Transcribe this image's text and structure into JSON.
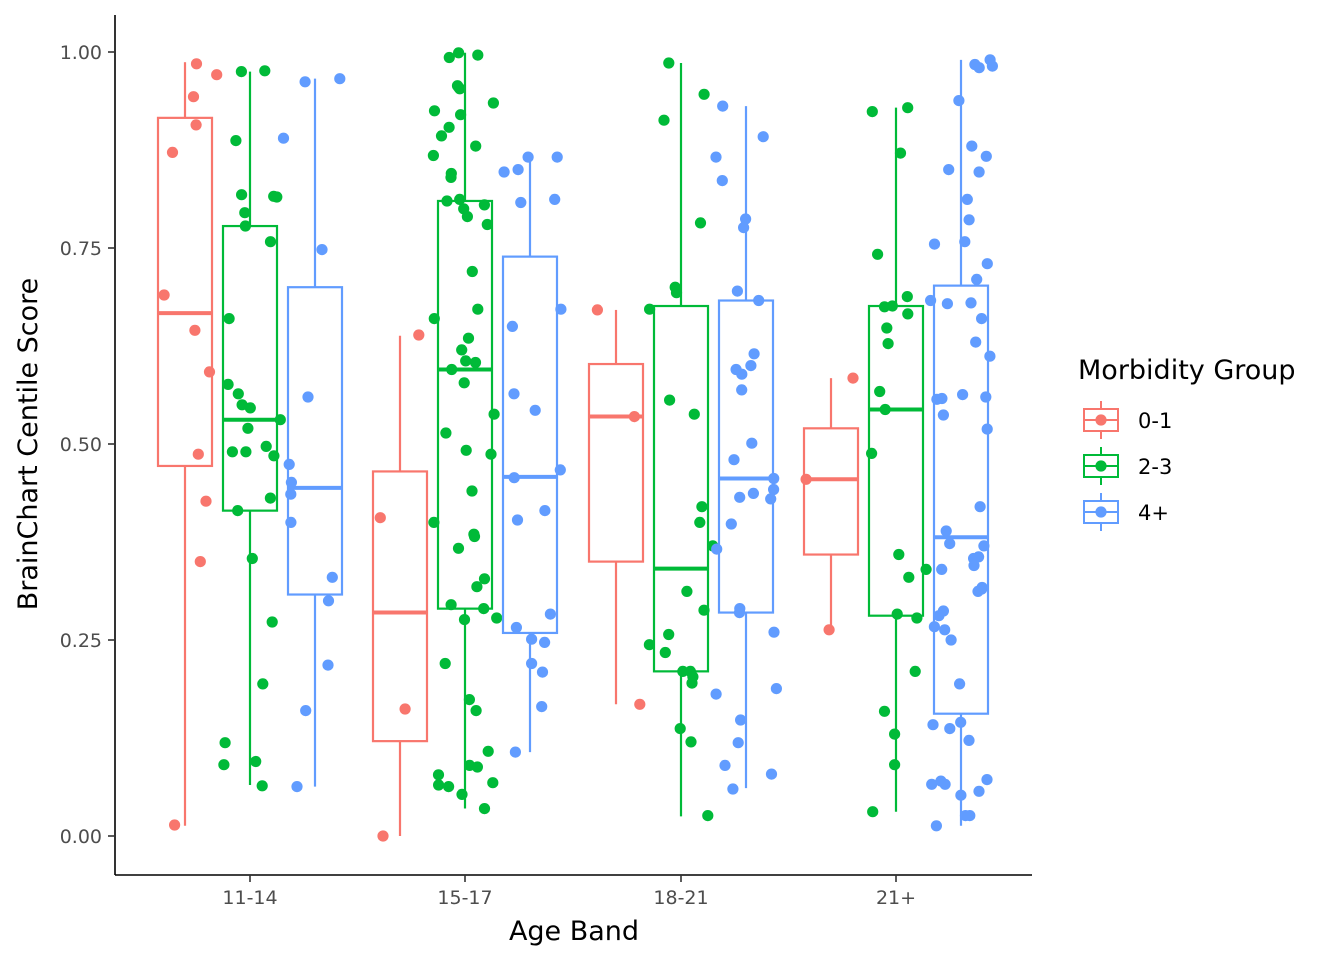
{
  "chart_data": {
    "type": "box",
    "xlabel": "Age Band",
    "ylabel": "BrainChart Centile Score",
    "ylim": [
      -0.05,
      1.05
    ],
    "y_ticks": [
      "0.00",
      "0.25",
      "0.50",
      "0.75",
      "1.00"
    ],
    "y_tick_values": [
      0,
      0.25,
      0.5,
      0.75,
      1.0
    ],
    "categories": [
      "11-14",
      "15-17",
      "18-21",
      "21+"
    ],
    "grid": false,
    "legend": {
      "title": "Morbidity Group",
      "position": "right"
    },
    "series": [
      {
        "name": "0-1",
        "color": "#F8766D",
        "boxes": [
          {
            "category": "11-14",
            "whisker_low": 0.013,
            "q1": 0.472,
            "median": 0.667,
            "q3": 0.916,
            "whisker_high": 0.987,
            "points": [
              0.645,
              0.872,
              0.943,
              0.971,
              0.985,
              0.907,
              0.69,
              0.592,
              0.487,
              0.427,
              0.35,
              0.014
            ]
          },
          {
            "category": "15-17",
            "whisker_low": 0.0,
            "q1": 0.121,
            "median": 0.285,
            "q3": 0.465,
            "whisker_high": 0.638,
            "points": [
              0.639,
              0.406,
              0.162,
              0.0
            ]
          },
          {
            "category": "18-21",
            "whisker_low": 0.168,
            "q1": 0.35,
            "median": 0.535,
            "q3": 0.602,
            "whisker_high": 0.671,
            "points": [
              0.671,
              0.535,
              0.168
            ]
          },
          {
            "category": "21+",
            "whisker_low": 0.263,
            "q1": 0.359,
            "median": 0.455,
            "q3": 0.52,
            "whisker_high": 0.584,
            "points": [
              0.584,
              0.455,
              0.263
            ]
          }
        ]
      },
      {
        "name": "2-3",
        "color": "#00BA38",
        "boxes": [
          {
            "category": "11-14",
            "whisker_low": 0.065,
            "q1": 0.415,
            "median": 0.531,
            "q3": 0.778,
            "whisker_high": 0.975,
            "points": [
              0.976,
              0.975,
              0.887,
              0.818,
              0.815,
              0.816,
              0.795,
              0.778,
              0.758,
              0.66,
              0.576,
              0.564,
              0.55,
              0.546,
              0.531,
              0.52,
              0.497,
              0.49,
              0.49,
              0.485,
              0.431,
              0.415,
              0.354,
              0.273,
              0.194,
              0.119,
              0.095,
              0.091,
              0.064
            ]
          },
          {
            "category": "15-17",
            "whisker_low": 0.035,
            "q1": 0.29,
            "median": 0.595,
            "q3": 0.81,
            "whisker_high": 0.999,
            "points": [
              0.999,
              0.996,
              0.993,
              0.957,
              0.955,
              0.953,
              0.935,
              0.92,
              0.925,
              0.904,
              0.893,
              0.88,
              0.868,
              0.845,
              0.84,
              0.812,
              0.81,
              0.805,
              0.8,
              0.79,
              0.78,
              0.72,
              0.672,
              0.66,
              0.635,
              0.62,
              0.606,
              0.604,
              0.595,
              0.578,
              0.538,
              0.514,
              0.492,
              0.487,
              0.44,
              0.4,
              0.385,
              0.382,
              0.367,
              0.328,
              0.318,
              0.295,
              0.29,
              0.278,
              0.276,
              0.22,
              0.174,
              0.16,
              0.108,
              0.09,
              0.088,
              0.078,
              0.068,
              0.065,
              0.063,
              0.053,
              0.035
            ]
          },
          {
            "category": "18-21",
            "whisker_low": 0.025,
            "q1": 0.21,
            "median": 0.341,
            "q3": 0.676,
            "whisker_high": 0.986,
            "points": [
              0.986,
              0.946,
              0.913,
              0.782,
              0.7,
              0.693,
              0.672,
              0.556,
              0.538,
              0.42,
              0.4,
              0.37,
              0.312,
              0.288,
              0.257,
              0.244,
              0.234,
              0.21,
              0.21,
              0.203,
              0.195,
              0.137,
              0.12,
              0.026
            ]
          },
          {
            "category": "21+",
            "whisker_low": 0.031,
            "q1": 0.281,
            "median": 0.544,
            "q3": 0.676,
            "whisker_high": 0.929,
            "points": [
              0.929,
              0.924,
              0.871,
              0.742,
              0.688,
              0.676,
              0.675,
              0.666,
              0.648,
              0.628,
              0.567,
              0.544,
              0.488,
              0.359,
              0.34,
              0.33,
              0.283,
              0.278,
              0.21,
              0.159,
              0.13,
              0.091,
              0.031
            ]
          }
        ]
      },
      {
        "name": "4+",
        "color": "#619CFF",
        "boxes": [
          {
            "category": "11-14",
            "whisker_low": 0.063,
            "q1": 0.308,
            "median": 0.444,
            "q3": 0.7,
            "whisker_high": 0.966,
            "points": [
              0.966,
              0.962,
              0.89,
              0.748,
              0.56,
              0.474,
              0.451,
              0.436,
              0.4,
              0.33,
              0.3,
              0.218,
              0.16,
              0.063
            ]
          },
          {
            "category": "15-17",
            "whisker_low": 0.107,
            "q1": 0.259,
            "median": 0.458,
            "q3": 0.739,
            "whisker_high": 0.866,
            "points": [
              0.866,
              0.866,
              0.85,
              0.847,
              0.812,
              0.808,
              0.672,
              0.65,
              0.564,
              0.543,
              0.467,
              0.457,
              0.415,
              0.403,
              0.283,
              0.266,
              0.251,
              0.247,
              0.22,
              0.209,
              0.165,
              0.107
            ]
          },
          {
            "category": "18-21",
            "whisker_low": 0.061,
            "q1": 0.285,
            "median": 0.456,
            "q3": 0.683,
            "whisker_high": 0.931,
            "points": [
              0.931,
              0.892,
              0.866,
              0.836,
              0.787,
              0.776,
              0.695,
              0.683,
              0.615,
              0.6,
              0.595,
              0.589,
              0.569,
              0.501,
              0.48,
              0.456,
              0.442,
              0.437,
              0.432,
              0.43,
              0.398,
              0.366,
              0.29,
              0.285,
              0.26,
              0.188,
              0.181,
              0.148,
              0.119,
              0.09,
              0.079,
              0.06
            ]
          },
          {
            "category": "21+",
            "whisker_low": 0.013,
            "q1": 0.156,
            "median": 0.381,
            "q3": 0.702,
            "whisker_high": 0.99,
            "points": [
              0.99,
              0.984,
              0.982,
              0.98,
              0.938,
              0.88,
              0.867,
              0.85,
              0.847,
              0.812,
              0.786,
              0.758,
              0.755,
              0.73,
              0.71,
              0.683,
              0.68,
              0.679,
              0.66,
              0.63,
              0.612,
              0.563,
              0.56,
              0.558,
              0.557,
              0.537,
              0.519,
              0.42,
              0.389,
              0.373,
              0.37,
              0.356,
              0.354,
              0.345,
              0.34,
              0.317,
              0.315,
              0.312,
              0.287,
              0.281,
              0.267,
              0.263,
              0.25,
              0.194,
              0.145,
              0.142,
              0.137,
              0.122,
              0.072,
              0.07,
              0.066,
              0.066,
              0.057,
              0.052,
              0.026,
              0.026,
              0.013
            ]
          }
        ]
      }
    ]
  }
}
